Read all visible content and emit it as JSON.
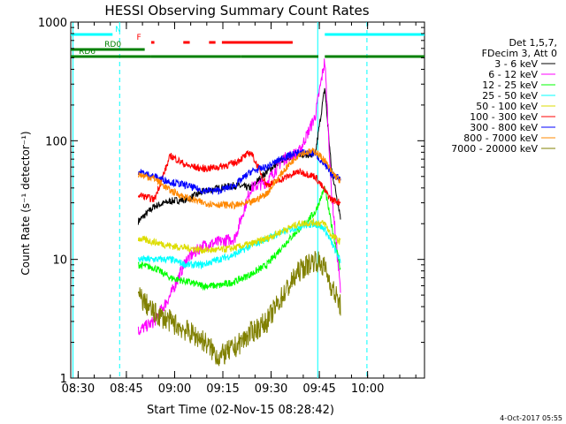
{
  "chart_data": {
    "type": "line",
    "title": "HESSI Observing Summary Count Rates",
    "xlabel": "Start Time (02-Nov-15 08:28:42)",
    "ylabel": "Count Rate (s⁻¹ detector⁻¹)",
    "y_scale": "log",
    "ylim": [
      1,
      1000
    ],
    "xlim_minutes": [
      -1,
      109
    ],
    "x_tick_labels": [
      "08:30",
      "08:45",
      "09:00",
      "09:15",
      "09:30",
      "09:45",
      "10:00"
    ],
    "x_tick_minutes": [
      1.3,
      16.3,
      31.3,
      46.3,
      61.3,
      76.3,
      91.3
    ],
    "y_tick_labels": [
      "1",
      "10",
      "100",
      "1000"
    ],
    "y_tick_values": [
      1,
      10,
      100,
      1000
    ],
    "x_minutes": [
      15,
      20,
      25,
      30,
      35,
      40,
      45,
      50,
      55,
      60,
      65,
      70,
      75,
      78,
      80,
      83
    ],
    "series": [
      {
        "name": "3 - 6 keV",
        "color": "#000000",
        "values": [
          null,
          21,
          28,
          31,
          32,
          37,
          40,
          42,
          40,
          55,
          70,
          78,
          75,
          280,
          60,
          22
        ]
      },
      {
        "name": "6 - 12 keV",
        "color": "#ff00ff",
        "values": [
          null,
          2.5,
          3,
          5,
          10,
          13,
          14,
          15,
          40,
          45,
          70,
          80,
          160,
          480,
          40,
          5
        ]
      },
      {
        "name": "12 - 25 keV",
        "color": "#00ff00",
        "values": [
          null,
          9,
          8.5,
          7,
          6.5,
          6,
          6,
          6.5,
          7.5,
          9,
          13,
          18,
          25,
          40,
          20,
          8
        ]
      },
      {
        "name": "25 - 50 keV",
        "color": "#00ffff",
        "values": [
          null,
          10,
          10,
          10,
          9,
          9,
          10,
          11,
          13,
          15,
          17,
          19,
          20,
          18,
          14,
          9.5
        ]
      },
      {
        "name": "50 - 100 keV",
        "color": "#dddd00",
        "values": [
          null,
          15,
          14,
          13,
          12.5,
          12,
          12,
          12.5,
          13.5,
          15,
          17.5,
          20,
          20.5,
          20,
          16,
          14
        ]
      },
      {
        "name": "100 - 300 keV",
        "color": "#ff0000",
        "values": [
          null,
          35,
          32,
          75,
          62,
          58,
          60,
          65,
          80,
          42,
          48,
          55,
          50,
          38,
          32,
          30
        ]
      },
      {
        "name": "300 - 800 keV",
        "color": "#0000ff",
        "values": [
          null,
          55,
          50,
          45,
          42,
          38,
          38,
          42,
          55,
          60,
          72,
          80,
          78,
          62,
          52,
          48
        ]
      },
      {
        "name": "800 - 7000 keV",
        "color": "#ff8800",
        "values": [
          null,
          52,
          48,
          38,
          33,
          30,
          29,
          28.5,
          30,
          36,
          55,
          78,
          82,
          68,
          55,
          45
        ]
      },
      {
        "name": "7000 - 20000 keV",
        "color": "#808000",
        "values": [
          null,
          5,
          3.5,
          3,
          2.5,
          2.1,
          1.5,
          1.8,
          2.4,
          3,
          5,
          8,
          10,
          8.5,
          6,
          4
        ]
      }
    ],
    "legend_header": [
      "Det 1,5,7,",
      "FDecim 3, Att 0"
    ],
    "legend_placement": "right",
    "state_bars": [
      {
        "label": "N",
        "color": "#00ffff",
        "spans": [
          [
            -1,
            12
          ],
          [
            78,
            109
          ]
        ]
      },
      {
        "label": "F",
        "color": "#ff0000",
        "spans": [
          [
            24,
            25
          ],
          [
            34,
            36
          ],
          [
            42,
            44
          ],
          [
            46,
            68
          ]
        ]
      },
      {
        "label": "RD0",
        "color": "#008000",
        "spans": [
          [
            -1,
            22
          ]
        ]
      },
      {
        "label": "RD6",
        "color": "#008000",
        "spans": [
          [
            -1,
            24
          ],
          [
            24,
            52
          ],
          [
            52,
            76
          ],
          [
            78,
            109
          ]
        ]
      }
    ],
    "vlines": [
      {
        "minute": -0.3,
        "color": "#00ffff",
        "style": "solid"
      },
      {
        "minute": 14.2,
        "color": "#00ffff",
        "style": "dashed"
      },
      {
        "minute": 75.8,
        "color": "#00ffff",
        "style": "solid"
      },
      {
        "minute": 91.1,
        "color": "#00ffff",
        "style": "dashed"
      }
    ],
    "grid": false
  },
  "footer": {
    "date_stamp": "4-Oct-2017 05:55"
  }
}
